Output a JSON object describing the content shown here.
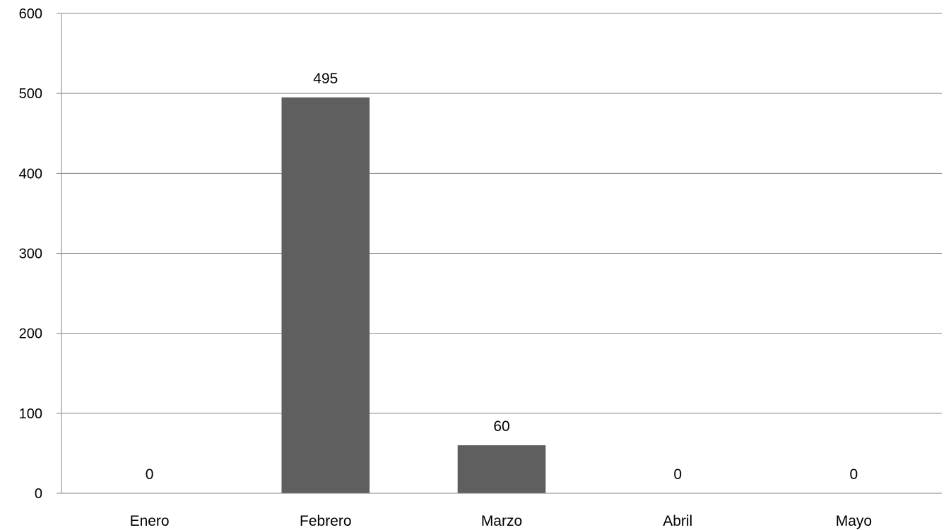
{
  "chart_data": {
    "type": "bar",
    "categories": [
      "Enero",
      "Febrero",
      "Marzo",
      "Abril",
      "Mayo"
    ],
    "values": [
      0,
      495,
      60,
      0,
      0
    ],
    "data_labels": [
      "0",
      "495",
      "60",
      "0",
      "0"
    ],
    "y_ticks": [
      "0",
      "100",
      "200",
      "300",
      "400",
      "500",
      "600"
    ],
    "ylim": [
      0,
      600
    ],
    "grid": true,
    "legend": "none",
    "colors": {
      "bar": "#5f5f5f",
      "grid": "#868686"
    }
  }
}
